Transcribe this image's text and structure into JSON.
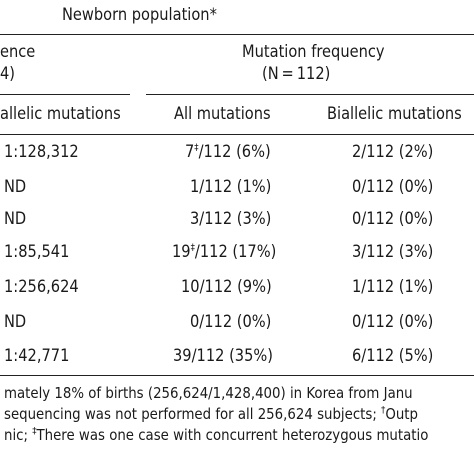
{
  "header": {
    "group_title": "Newborn population*",
    "left_col_label_line1": "ence",
    "left_col_label_line2": "4)",
    "right_group_label_line1": "Mutation frequency",
    "right_group_label_line2": "(N = 112)",
    "sub_left": "allelic mutations",
    "sub_all": "All mutations",
    "sub_biallelic": "Biallelic mutations"
  },
  "rows": [
    {
      "incidence": "1:128,312",
      "all_pre": "7",
      "all_mark": "‡",
      "all_post": "/112 (6%)",
      "biallelic": "2/112 (2%)"
    },
    {
      "incidence": "ND",
      "all_pre": "1/112 (1%)",
      "all_mark": "",
      "all_post": "",
      "biallelic": "0/112 (0%)"
    },
    {
      "incidence": "ND",
      "all_pre": "3/112 (3%)",
      "all_mark": "",
      "all_post": "",
      "biallelic": "0/112 (0%)"
    },
    {
      "incidence": "1:85,541",
      "all_pre": "19",
      "all_mark": "‡",
      "all_post": "/112 (17%)",
      "biallelic": "3/112 (3%)"
    },
    {
      "incidence": "1:256,624",
      "all_pre": "10/112 (9%)",
      "all_mark": "",
      "all_post": "",
      "biallelic": "1/112 (1%)"
    },
    {
      "incidence": "ND",
      "all_pre": "0/112 (0%)",
      "all_mark": "",
      "all_post": "",
      "biallelic": "0/112 (0%)"
    },
    {
      "incidence": "1:42,771",
      "all_pre": "39/112 (35%)",
      "all_mark": "",
      "all_post": "",
      "biallelic": "6/112 (5%)"
    }
  ],
  "footnotes": {
    "line1": "mately 18% of births (256,624/1,428,400) in Korea from Janu",
    "line2_pre": "sequencing was not performed for all 256,624 subjects; ",
    "line2_mark": "†",
    "line2_post": "Outp",
    "line3_pre": "nic; ",
    "line3_mark": "‡",
    "line3_post": "There was one case with concurrent heterozygous mutatio"
  },
  "colors": {
    "text": "#1a1a1a",
    "rule": "#222222",
    "background": "#ffffff"
  }
}
